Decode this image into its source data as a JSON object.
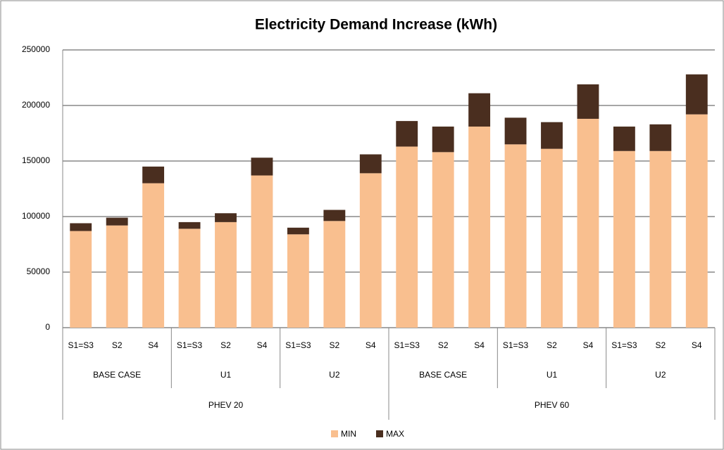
{
  "chart_data": {
    "type": "stacked_bar",
    "title": "Electricity Demand Increase (kWh)",
    "categories": [
      "S1=S3",
      "S2",
      "S4",
      "S1=S3",
      "S2",
      "S4",
      "S1=S3",
      "S2",
      "S4",
      "S1=S3",
      "S2",
      "S4",
      "S1=S3",
      "S2",
      "S4",
      "S1=S3",
      "S2",
      "S4"
    ],
    "groups": [
      {
        "name": "PHEV 20",
        "subgroups": [
          "BASE CASE",
          "U1",
          "U2"
        ]
      },
      {
        "name": "PHEV 60",
        "subgroups": [
          "BASE CASE",
          "U1",
          "U2"
        ]
      }
    ],
    "series": [
      {
        "name": "MIN",
        "color": "#f9bf8f",
        "values": [
          87000,
          92000,
          130000,
          89000,
          95000,
          137000,
          84000,
          96000,
          139000,
          163000,
          158000,
          181000,
          165000,
          161000,
          188000,
          159000,
          159000,
          192000
        ]
      },
      {
        "name": "MAX",
        "color": "#4a2e1f",
        "values": [
          7000,
          7000,
          15000,
          6000,
          8000,
          16000,
          6000,
          10000,
          17000,
          23000,
          23000,
          30000,
          24000,
          24000,
          31000,
          22000,
          24000,
          36000
        ]
      }
    ],
    "ylim": [
      0,
      250000
    ],
    "yticks": [
      0,
      50000,
      100000,
      150000,
      200000,
      250000
    ],
    "grid": true
  }
}
